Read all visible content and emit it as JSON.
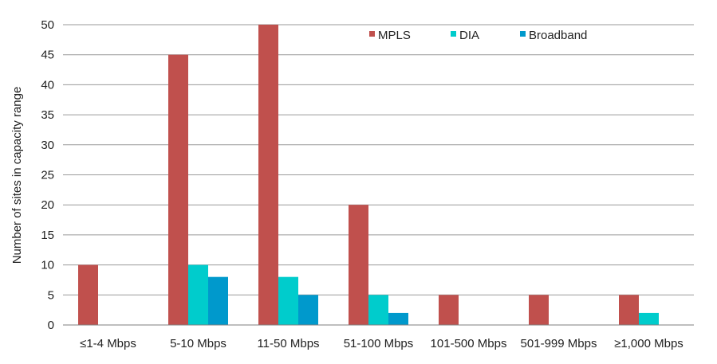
{
  "chart_data": {
    "type": "bar",
    "title": "",
    "xlabel": "",
    "ylabel": "Number of sites in capacity range",
    "ylim": [
      0,
      50
    ],
    "yticks": [
      0,
      5,
      10,
      15,
      20,
      25,
      30,
      35,
      40,
      45,
      50
    ],
    "grid": true,
    "legend_position": "top-right",
    "categories": [
      "≤1-4 Mbps",
      "5-10 Mbps",
      "11-50 Mbps",
      "51-100 Mbps",
      "101-500 Mbps",
      "501-999 Mbps",
      "≥1,000 Mbps"
    ],
    "series": [
      {
        "name": "MPLS",
        "color": "#c0504d",
        "values": [
          10,
          45,
          50,
          20,
          5,
          5,
          5
        ]
      },
      {
        "name": "DIA",
        "color": "#00cccc",
        "values": [
          0,
          10,
          8,
          5,
          0,
          0,
          2
        ]
      },
      {
        "name": "Broadband",
        "color": "#0099cc",
        "values": [
          0,
          8,
          5,
          2,
          0,
          0,
          0
        ]
      }
    ]
  }
}
